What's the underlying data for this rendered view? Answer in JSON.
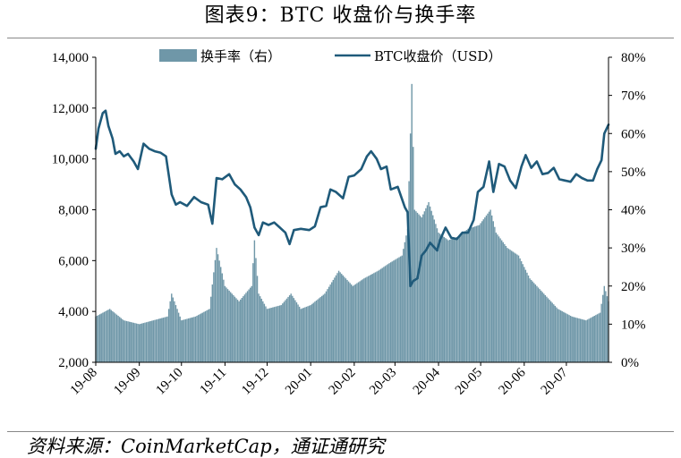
{
  "title": "图表9：BTC 收盘价与换手率",
  "source": "资料来源：CoinMarketCap，通证通研究",
  "colors": {
    "price_line": "#1f5a7a",
    "turnover_bar": "#6f97a8"
  },
  "chart_data": {
    "type": "bar+line",
    "categories": [
      "19-08",
      "19-09",
      "19-10",
      "19-11",
      "19-12",
      "20-01",
      "20-02",
      "20-03",
      "20-04",
      "20-05",
      "20-06",
      "20-07"
    ],
    "x_start": "2019-08-01",
    "x_end": "2020-07-31",
    "y_left": {
      "label": "",
      "min": 2000,
      "max": 14000,
      "ticks": [
        "2,000",
        "4,000",
        "6,000",
        "8,000",
        "10,000",
        "12,000",
        "14,000"
      ]
    },
    "y_right": {
      "label": "",
      "min": 0,
      "max": 80,
      "ticks": [
        "0%",
        "10%",
        "20%",
        "30%",
        "40%",
        "50%",
        "60%",
        "70%",
        "80%"
      ]
    },
    "legend": {
      "position": "top",
      "entries": [
        "换手率（右）",
        "BTC收盘价（USD）"
      ]
    },
    "series": [
      {
        "name": "BTC收盘价（USD）",
        "type": "line",
        "axis": "left",
        "points": [
          [
            "2019-08-01",
            10400
          ],
          [
            "2019-08-03",
            11200
          ],
          [
            "2019-08-06",
            11800
          ],
          [
            "2019-08-08",
            11900
          ],
          [
            "2019-08-10",
            11300
          ],
          [
            "2019-08-13",
            10800
          ],
          [
            "2019-08-15",
            10200
          ],
          [
            "2019-08-18",
            10300
          ],
          [
            "2019-08-21",
            10100
          ],
          [
            "2019-08-24",
            10200
          ],
          [
            "2019-08-28",
            9900
          ],
          [
            "2019-08-31",
            9600
          ],
          [
            "2019-09-04",
            10600
          ],
          [
            "2019-09-08",
            10400
          ],
          [
            "2019-09-12",
            10300
          ],
          [
            "2019-09-16",
            10250
          ],
          [
            "2019-09-20",
            10100
          ],
          [
            "2019-09-24",
            8600
          ],
          [
            "2019-09-27",
            8200
          ],
          [
            "2019-09-30",
            8300
          ],
          [
            "2019-10-05",
            8150
          ],
          [
            "2019-10-10",
            8500
          ],
          [
            "2019-10-15",
            8300
          ],
          [
            "2019-10-20",
            8200
          ],
          [
            "2019-10-23",
            7450
          ],
          [
            "2019-10-26",
            9250
          ],
          [
            "2019-10-30",
            9200
          ],
          [
            "2019-11-04",
            9400
          ],
          [
            "2019-11-08",
            9000
          ],
          [
            "2019-11-12",
            8800
          ],
          [
            "2019-11-16",
            8500
          ],
          [
            "2019-11-19",
            8100
          ],
          [
            "2019-11-22",
            7300
          ],
          [
            "2019-11-25",
            7000
          ],
          [
            "2019-11-28",
            7500
          ],
          [
            "2019-12-02",
            7400
          ],
          [
            "2019-12-06",
            7500
          ],
          [
            "2019-12-10",
            7300
          ],
          [
            "2019-12-14",
            7100
          ],
          [
            "2019-12-17",
            6650
          ],
          [
            "2019-12-20",
            7200
          ],
          [
            "2019-12-25",
            7250
          ],
          [
            "2019-12-31",
            7200
          ],
          [
            "2020-01-04",
            7350
          ],
          [
            "2020-01-08",
            8100
          ],
          [
            "2020-01-12",
            8150
          ],
          [
            "2020-01-15",
            8800
          ],
          [
            "2020-01-19",
            8700
          ],
          [
            "2020-01-24",
            8450
          ],
          [
            "2020-01-28",
            9300
          ],
          [
            "2020-02-01",
            9350
          ],
          [
            "2020-02-06",
            9600
          ],
          [
            "2020-02-10",
            10100
          ],
          [
            "2020-02-13",
            10300
          ],
          [
            "2020-02-17",
            10000
          ],
          [
            "2020-02-20",
            9600
          ],
          [
            "2020-02-24",
            9700
          ],
          [
            "2020-02-27",
            8800
          ],
          [
            "2020-03-03",
            8900
          ],
          [
            "2020-03-08",
            8100
          ],
          [
            "2020-03-10",
            7900
          ],
          [
            "2020-03-12",
            5000
          ],
          [
            "2020-03-14",
            5200
          ],
          [
            "2020-03-17",
            5300
          ],
          [
            "2020-03-20",
            6200
          ],
          [
            "2020-03-23",
            6400
          ],
          [
            "2020-03-26",
            6700
          ],
          [
            "2020-03-31",
            6400
          ],
          [
            "2020-04-02",
            6800
          ],
          [
            "2020-04-06",
            7300
          ],
          [
            "2020-04-10",
            6900
          ],
          [
            "2020-04-14",
            6850
          ],
          [
            "2020-04-18",
            7100
          ],
          [
            "2020-04-22",
            7100
          ],
          [
            "2020-04-26",
            7600
          ],
          [
            "2020-04-29",
            8700
          ],
          [
            "2020-05-03",
            8900
          ],
          [
            "2020-05-07",
            9900
          ],
          [
            "2020-05-10",
            8700
          ],
          [
            "2020-05-14",
            9800
          ],
          [
            "2020-05-18",
            9700
          ],
          [
            "2020-05-22",
            9150
          ],
          [
            "2020-05-26",
            8850
          ],
          [
            "2020-05-30",
            9700
          ],
          [
            "2020-06-02",
            10150
          ],
          [
            "2020-06-06",
            9650
          ],
          [
            "2020-06-10",
            9900
          ],
          [
            "2020-06-14",
            9400
          ],
          [
            "2020-06-18",
            9450
          ],
          [
            "2020-06-22",
            9650
          ],
          [
            "2020-06-26",
            9200
          ],
          [
            "2020-06-30",
            9150
          ],
          [
            "2020-07-04",
            9100
          ],
          [
            "2020-07-08",
            9400
          ],
          [
            "2020-07-12",
            9250
          ],
          [
            "2020-07-16",
            9150
          ],
          [
            "2020-07-20",
            9150
          ],
          [
            "2020-07-23",
            9600
          ],
          [
            "2020-07-26",
            9950
          ],
          [
            "2020-07-28",
            11000
          ],
          [
            "2020-07-31",
            11350
          ]
        ]
      },
      {
        "name": "换手率（右）",
        "type": "bar",
        "axis": "right",
        "points": [
          [
            "2019-08-01",
            12
          ],
          [
            "2019-08-11",
            14
          ],
          [
            "2019-08-21",
            11
          ],
          [
            "2019-09-01",
            10
          ],
          [
            "2019-09-11",
            11
          ],
          [
            "2019-09-21",
            12
          ],
          [
            "2019-09-24",
            18
          ],
          [
            "2019-10-01",
            11
          ],
          [
            "2019-10-11",
            12
          ],
          [
            "2019-10-21",
            14
          ],
          [
            "2019-10-26",
            30
          ],
          [
            "2019-11-01",
            20
          ],
          [
            "2019-11-11",
            16
          ],
          [
            "2019-11-20",
            20
          ],
          [
            "2019-11-22",
            32
          ],
          [
            "2019-11-25",
            18
          ],
          [
            "2019-12-01",
            14
          ],
          [
            "2019-12-11",
            15
          ],
          [
            "2019-12-18",
            18
          ],
          [
            "2019-12-25",
            14
          ],
          [
            "2020-01-01",
            15
          ],
          [
            "2020-01-11",
            18
          ],
          [
            "2020-01-21",
            24
          ],
          [
            "2020-01-31",
            20
          ],
          [
            "2020-02-08",
            22
          ],
          [
            "2020-02-18",
            24
          ],
          [
            "2020-02-26",
            26
          ],
          [
            "2020-03-06",
            28
          ],
          [
            "2020-03-10",
            35
          ],
          [
            "2020-03-12",
            60
          ],
          [
            "2020-03-13",
            73
          ],
          [
            "2020-03-15",
            40
          ],
          [
            "2020-03-20",
            38
          ],
          [
            "2020-03-25",
            42
          ],
          [
            "2020-04-01",
            34
          ],
          [
            "2020-04-08",
            32
          ],
          [
            "2020-04-15",
            33
          ],
          [
            "2020-04-22",
            35
          ],
          [
            "2020-04-30",
            36
          ],
          [
            "2020-05-08",
            40
          ],
          [
            "2020-05-12",
            34
          ],
          [
            "2020-05-20",
            30
          ],
          [
            "2020-05-28",
            28
          ],
          [
            "2020-06-05",
            22
          ],
          [
            "2020-06-15",
            18
          ],
          [
            "2020-06-25",
            14
          ],
          [
            "2020-07-05",
            12
          ],
          [
            "2020-07-15",
            11
          ],
          [
            "2020-07-25",
            13
          ],
          [
            "2020-07-28",
            20
          ],
          [
            "2020-07-31",
            16
          ]
        ]
      }
    ]
  }
}
